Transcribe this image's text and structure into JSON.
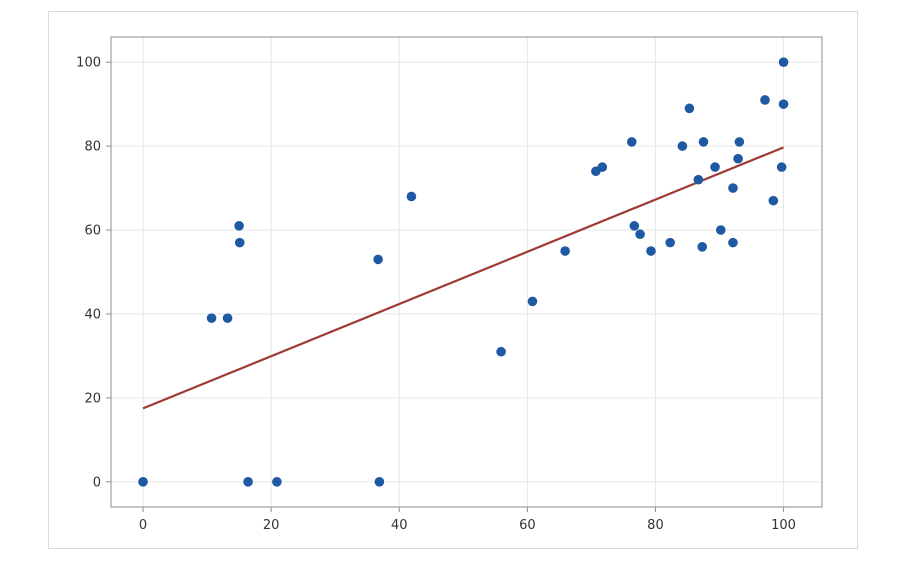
{
  "chart_data": {
    "type": "scatter",
    "title": "",
    "xlabel": "",
    "ylabel": "",
    "xlim": [
      -5,
      106
    ],
    "ylim": [
      -6,
      106
    ],
    "x_ticks": [
      0,
      20,
      40,
      60,
      80,
      100
    ],
    "y_ticks": [
      0,
      20,
      40,
      60,
      80,
      100
    ],
    "x_tick_labels": [
      "0",
      "20",
      "40",
      "60",
      "80",
      "100"
    ],
    "y_tick_labels": [
      "0",
      "20",
      "40",
      "60",
      "80",
      "100"
    ],
    "grid": true,
    "legend": "none",
    "series": [
      {
        "points": [
          [
            0,
            0
          ],
          [
            10.7,
            39
          ],
          [
            13.2,
            39
          ],
          [
            15.0,
            61
          ],
          [
            15.1,
            57
          ],
          [
            16.4,
            0
          ],
          [
            20.9,
            0
          ],
          [
            36.7,
            53
          ],
          [
            36.9,
            0
          ],
          [
            41.9,
            68
          ],
          [
            55.9,
            31
          ],
          [
            60.8,
            43
          ],
          [
            65.9,
            55
          ],
          [
            70.7,
            74
          ],
          [
            71.7,
            75
          ],
          [
            76.3,
            81
          ],
          [
            76.7,
            61
          ],
          [
            77.6,
            59
          ],
          [
            79.3,
            55
          ],
          [
            82.3,
            57
          ],
          [
            84.2,
            80
          ],
          [
            85.3,
            89
          ],
          [
            86.7,
            72
          ],
          [
            87.3,
            56
          ],
          [
            87.5,
            81
          ],
          [
            89.3,
            75
          ],
          [
            90.2,
            60
          ],
          [
            92.1,
            70
          ],
          [
            92.1,
            57
          ],
          [
            92.9,
            77
          ],
          [
            93.1,
            81
          ],
          [
            97.1,
            91
          ],
          [
            98.4,
            67
          ],
          [
            99.7,
            75
          ],
          [
            100,
            100
          ],
          [
            100,
            90
          ]
        ]
      }
    ],
    "fit_line": {
      "x": [
        0,
        100
      ],
      "y": [
        17.5,
        79.7
      ]
    },
    "colors": {
      "points": "#1f58a3",
      "fit_line": "#9e3a32",
      "grid": "#e6e6e6",
      "axis": "#8c8c8c"
    }
  }
}
